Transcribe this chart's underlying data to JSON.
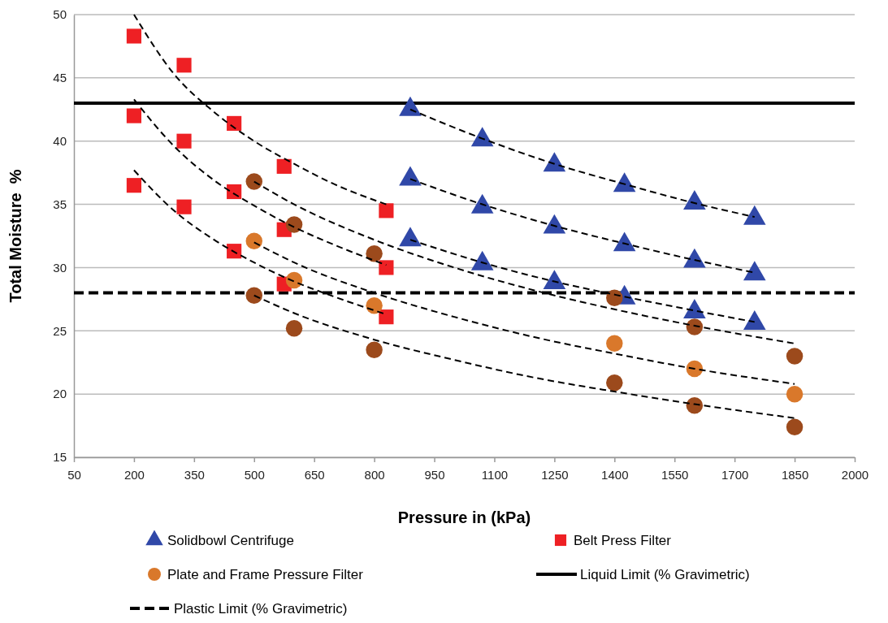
{
  "chart_data": {
    "type": "scatter",
    "xlabel": "Pressure in (kPa)",
    "ylabel": "Total Moisture  %",
    "xlim": [
      50,
      2000
    ],
    "xticks": [
      50,
      200,
      350,
      500,
      650,
      800,
      950,
      1100,
      1250,
      1400,
      1550,
      1700,
      1850,
      2000
    ],
    "ylim": [
      15,
      50
    ],
    "yticks": [
      15,
      20,
      25,
      30,
      35,
      40,
      45,
      50
    ],
    "grid": "y",
    "legend": "bottom",
    "series": [
      {
        "name": "Solidbowl Centrifuge",
        "marker": "triangle",
        "color": "#3048a8",
        "x": [
          890,
          1070,
          1250,
          1425,
          1600,
          1750,
          890,
          1070,
          1250,
          1425,
          1600,
          1750,
          890,
          1070,
          1250,
          1425,
          1600,
          1750
        ],
        "values": [
          42.5,
          40.1,
          38.1,
          36.5,
          35.1,
          33.9,
          37,
          34.8,
          33.2,
          31.8,
          30.5,
          29.5,
          32.2,
          30.3,
          28.8,
          27.6,
          26.5,
          25.6
        ]
      },
      {
        "name": "Belt Press Filter",
        "marker": "square",
        "color": "#ee2024",
        "x": [
          200,
          325,
          450,
          575,
          830,
          200,
          325,
          450,
          575,
          830,
          200,
          325,
          450,
          575,
          830
        ],
        "values": [
          48.3,
          46,
          41.4,
          38,
          34.5,
          42,
          40,
          36,
          33,
          30,
          36.5,
          34.8,
          31.3,
          28.7,
          26.1
        ]
      },
      {
        "name": "Plate and Frame Pressure Filter",
        "marker": "circle",
        "color": "#d9782b",
        "x": [
          500,
          600,
          800,
          1400,
          1600,
          1850,
          500,
          600,
          800,
          1400,
          1600,
          1850,
          500,
          600,
          800,
          1400,
          1600,
          1850
        ],
        "values": [
          36.8,
          33.4,
          31.1,
          27.6,
          25.3,
          23,
          32.1,
          29,
          27,
          24,
          22,
          20,
          27.8,
          25.2,
          23.5,
          20.9,
          19.1,
          17.4
        ],
        "colors": [
          "#9c4a1c",
          "#9c4a1c",
          "#9c4a1c",
          "#9c4a1c",
          "#9c4a1c",
          "#9c4a1c",
          "#d9782b",
          "#d9782b",
          "#d9782b",
          "#d9782b",
          "#d9782b",
          "#d9782b",
          "#9c4a1c",
          "#9c4a1c",
          "#9c4a1c",
          "#9c4a1c",
          "#9c4a1c",
          "#9c4a1c"
        ]
      },
      {
        "type": "line",
        "color": "#000000",
        "marker": "none",
        "line_style": "dashed",
        "x": [
          200,
          300,
          400,
          500,
          600,
          700,
          830
        ],
        "values": [
          50,
          45.3,
          42.3,
          40,
          38.2,
          36.6,
          35
        ]
      },
      {
        "type": "line",
        "color": "#000000",
        "marker": "none",
        "line_style": "dashed",
        "x": [
          200,
          300,
          400,
          500,
          600,
          700,
          830
        ],
        "values": [
          43.3,
          39.6,
          36.9,
          34.9,
          33.2,
          31.8,
          30.2
        ]
      },
      {
        "type": "line",
        "color": "#000000",
        "marker": "none",
        "line_style": "dashed",
        "x": [
          200,
          300,
          400,
          500,
          600,
          700,
          830
        ],
        "values": [
          37.7,
          34.5,
          32.2,
          30.4,
          28.9,
          27.7,
          26.3
        ]
      },
      {
        "type": "line",
        "color": "#000000",
        "marker": "none",
        "line_style": "dashed",
        "x": [
          500,
          600,
          800,
          1000,
          1200,
          1400,
          1600,
          1850
        ],
        "values": [
          36.8,
          35,
          32.2,
          30,
          28.2,
          26.7,
          25.4,
          24
        ]
      },
      {
        "type": "line",
        "color": "#000000",
        "marker": "none",
        "line_style": "dashed",
        "x": [
          500,
          600,
          800,
          1000,
          1200,
          1400,
          1600,
          1850
        ],
        "values": [
          32,
          30.4,
          28,
          26.1,
          24.5,
          23.2,
          22,
          20.8
        ]
      },
      {
        "type": "line",
        "color": "#000000",
        "marker": "none",
        "line_style": "dashed",
        "x": [
          500,
          600,
          800,
          1000,
          1200,
          1400,
          1600,
          1850
        ],
        "values": [
          27.8,
          26.4,
          24.3,
          22.7,
          21.3,
          20.2,
          19.2,
          18.1
        ]
      },
      {
        "type": "line",
        "color": "#000000",
        "marker": "none",
        "line_style": "dashed",
        "x": [
          890,
          1070,
          1250,
          1425,
          1600,
          1750
        ],
        "values": [
          42.5,
          40.2,
          38.2,
          36.6,
          35.1,
          34
        ]
      },
      {
        "type": "line",
        "color": "#000000",
        "marker": "none",
        "line_style": "dashed",
        "x": [
          890,
          1070,
          1250,
          1425,
          1600,
          1750
        ],
        "values": [
          37,
          35,
          33.3,
          31.9,
          30.6,
          29.6
        ]
      },
      {
        "type": "line",
        "color": "#000000",
        "marker": "none",
        "line_style": "dashed",
        "x": [
          890,
          1070,
          1250,
          1425,
          1600,
          1750
        ],
        "values": [
          32.2,
          30.4,
          28.9,
          27.7,
          26.6,
          25.7
        ]
      }
    ],
    "ref_lines": [
      {
        "axis": "y",
        "value": 43,
        "label": "Liquid Limit (% Gravimetric)",
        "color": "#000000",
        "line_style": "solid"
      },
      {
        "axis": "y",
        "value": 28,
        "label": "Plastic Limit (% Gravimetric)",
        "color": "#000000",
        "line_style": "dashed"
      }
    ]
  }
}
